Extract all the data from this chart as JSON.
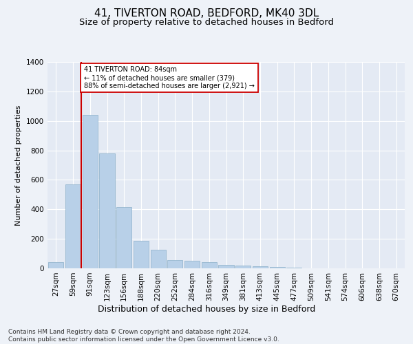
{
  "title1": "41, TIVERTON ROAD, BEDFORD, MK40 3DL",
  "title2": "Size of property relative to detached houses in Bedford",
  "xlabel": "Distribution of detached houses by size in Bedford",
  "ylabel": "Number of detached properties",
  "bar_values": [
    40,
    570,
    1040,
    780,
    415,
    185,
    125,
    55,
    50,
    40,
    25,
    20,
    15,
    8,
    5,
    2,
    1,
    0,
    0,
    0,
    0
  ],
  "bar_labels": [
    "27sqm",
    "59sqm",
    "91sqm",
    "123sqm",
    "156sqm",
    "188sqm",
    "220sqm",
    "252sqm",
    "284sqm",
    "316sqm",
    "349sqm",
    "381sqm",
    "413sqm",
    "445sqm",
    "477sqm",
    "509sqm",
    "541sqm",
    "574sqm",
    "606sqm",
    "638sqm",
    "670sqm"
  ],
  "bar_color": "#b8d0e8",
  "bar_edge_color": "#8aafc8",
  "vline_color": "#cc0000",
  "vline_x": 1.5,
  "annotation_text": "41 TIVERTON ROAD: 84sqm\n← 11% of detached houses are smaller (379)\n88% of semi-detached houses are larger (2,921) →",
  "annotation_box_color": "#ffffff",
  "annotation_box_edge": "#cc0000",
  "ylim": [
    0,
    1400
  ],
  "yticks": [
    0,
    200,
    400,
    600,
    800,
    1000,
    1200,
    1400
  ],
  "background_color": "#eef2f8",
  "plot_bg_color": "#e4eaf4",
  "footer_text": "Contains HM Land Registry data © Crown copyright and database right 2024.\nContains public sector information licensed under the Open Government Licence v3.0.",
  "title1_fontsize": 11,
  "title2_fontsize": 9.5,
  "xlabel_fontsize": 9,
  "ylabel_fontsize": 8,
  "tick_fontsize": 7.5,
  "footer_fontsize": 6.5
}
